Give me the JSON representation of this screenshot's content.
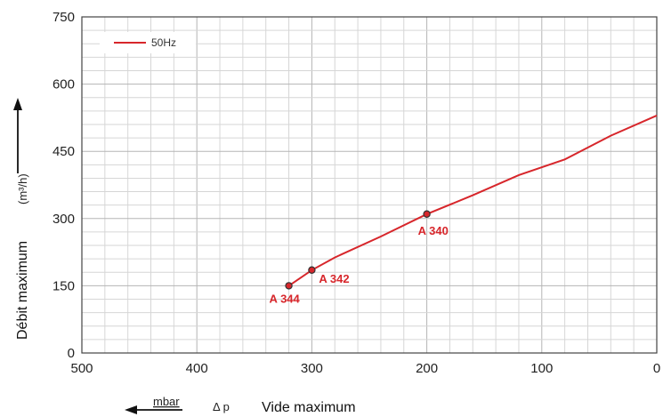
{
  "chart_data": {
    "type": "line",
    "title": "",
    "xlabel": "Vide maximum",
    "xunit": "mbar",
    "xsymbol": "Δ p",
    "ylabel": "Débit maximum",
    "yunit": "(m³/h)",
    "xlim": [
      500,
      0
    ],
    "ylim": [
      0,
      750
    ],
    "x_ticks": [
      500,
      400,
      300,
      200,
      100,
      0
    ],
    "y_ticks": [
      0,
      150,
      300,
      450,
      600,
      750
    ],
    "x_ticks_labels": [
      "500",
      "400",
      "300",
      "200",
      "100",
      "0"
    ],
    "y_ticks_labels": [
      "0",
      "150",
      "300",
      "450",
      "600",
      "750"
    ],
    "grid": true,
    "legend_position": "top-left",
    "series": [
      {
        "name": "50Hz",
        "color": "#d7262b",
        "points": [
          {
            "x": 320,
            "y": 150
          },
          {
            "x": 300,
            "y": 185
          },
          {
            "x": 280,
            "y": 213
          },
          {
            "x": 240,
            "y": 260
          },
          {
            "x": 200,
            "y": 310
          },
          {
            "x": 160,
            "y": 352
          },
          {
            "x": 120,
            "y": 397
          },
          {
            "x": 80,
            "y": 432
          },
          {
            "x": 40,
            "y": 485
          },
          {
            "x": 0,
            "y": 530
          }
        ]
      }
    ],
    "annotations": [
      {
        "label": "A 344",
        "x": 320,
        "y": 150
      },
      {
        "label": "A 342",
        "x": 300,
        "y": 185
      },
      {
        "label": "A 340",
        "x": 200,
        "y": 310
      }
    ]
  }
}
